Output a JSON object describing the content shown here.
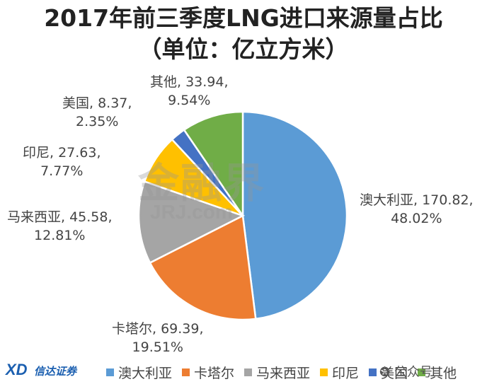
{
  "header": {
    "title": "2017年前三季度LNG进口来源量占比",
    "subtitle": "（单位：亿立方米）"
  },
  "chart_data": {
    "type": "pie",
    "title": "2017年前三季度LNG进口来源量占比",
    "subtitle": "（单位：亿立方米）",
    "series": [
      {
        "name": "澳大利亚",
        "value": 170.82,
        "value_label": "170.82,",
        "percent": 48.02,
        "percent_label": "48.02%",
        "color": "#5b9bd5"
      },
      {
        "name": "卡塔尔",
        "value": 69.39,
        "value_label": "69.39,",
        "percent": 19.51,
        "percent_label": "19.51%",
        "color": "#ed7d31"
      },
      {
        "name": "马来西亚",
        "value": 45.58,
        "value_label": "45.58,",
        "percent": 12.81,
        "percent_label": "12.81%",
        "color": "#a5a5a5"
      },
      {
        "name": "印尼",
        "value": 27.63,
        "value_label": "27.63,",
        "percent": 7.77,
        "percent_label": "7.77%",
        "color": "#ffc000"
      },
      {
        "name": "美国",
        "value": 8.37,
        "value_label": "8.37,",
        "percent": 2.35,
        "percent_label": "2.35%",
        "color": "#4472c4"
      },
      {
        "name": "其他",
        "value": 33.94,
        "value_label": "33.94,",
        "percent": 9.54,
        "percent_label": "9.54%",
        "color": "#70ad47"
      }
    ],
    "legend_position": "bottom"
  },
  "watermark": {
    "text": "金融界",
    "sub": "JRJ.com"
  },
  "brand": {
    "logo_text": "XD",
    "logo_sub": "信达证券"
  },
  "footer": {
    "wechat_text": "公众号"
  }
}
